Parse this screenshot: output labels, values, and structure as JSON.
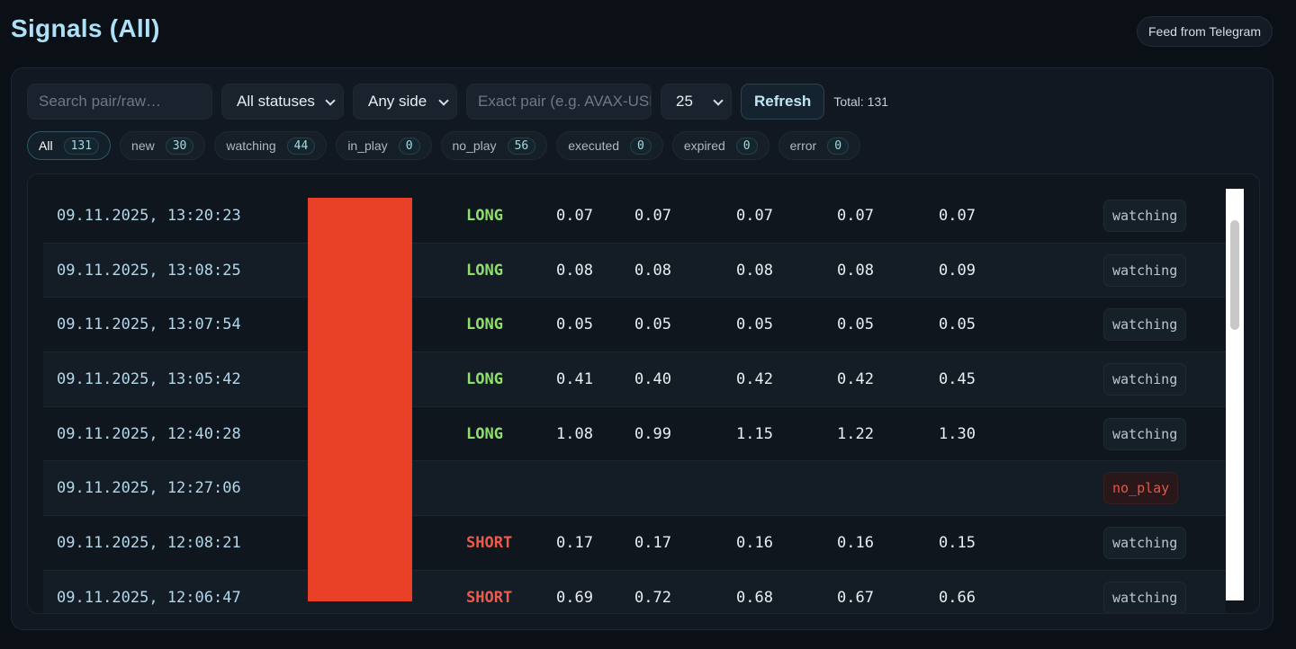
{
  "header": {
    "title": "Signals (All)",
    "feed_button": "Feed from Telegram"
  },
  "controls": {
    "search_placeholder": "Search pair/raw…",
    "status_select": "All statuses",
    "side_select": "Any side",
    "pair_placeholder": "Exact pair (e.g. AVAX-USDT)",
    "page_size": "25",
    "refresh_label": "Refresh",
    "total": "Total: 131"
  },
  "chips": [
    {
      "label": "All",
      "count": "131",
      "active": true
    },
    {
      "label": "new",
      "count": "30"
    },
    {
      "label": "watching",
      "count": "44"
    },
    {
      "label": "in_play",
      "count": "0"
    },
    {
      "label": "no_play",
      "count": "56"
    },
    {
      "label": "executed",
      "count": "0"
    },
    {
      "label": "expired",
      "count": "0"
    },
    {
      "label": "error",
      "count": "0"
    }
  ],
  "rows": [
    {
      "date": "09.11.2025, 13:20:23",
      "side": "LONG",
      "v1": "0.07",
      "v2": "0.07",
      "v3": "0.07",
      "v4": "0.07",
      "v5": "0.07",
      "status": "watching"
    },
    {
      "date": "09.11.2025, 13:08:25",
      "side": "LONG",
      "v1": "0.08",
      "v2": "0.08",
      "v3": "0.08",
      "v4": "0.08",
      "v5": "0.09",
      "status": "watching"
    },
    {
      "date": "09.11.2025, 13:07:54",
      "side": "LONG",
      "v1": "0.05",
      "v2": "0.05",
      "v3": "0.05",
      "v4": "0.05",
      "v5": "0.05",
      "status": "watching"
    },
    {
      "date": "09.11.2025, 13:05:42",
      "side": "LONG",
      "v1": "0.41",
      "v2": "0.40",
      "v3": "0.42",
      "v4": "0.42",
      "v5": "0.45",
      "status": "watching"
    },
    {
      "date": "09.11.2025, 12:40:28",
      "side": "LONG",
      "v1": "1.08",
      "v2": "0.99",
      "v3": "1.15",
      "v4": "1.22",
      "v5": "1.30",
      "status": "watching"
    },
    {
      "date": "09.11.2025, 12:27:06",
      "side": "",
      "v1": "",
      "v2": "",
      "v3": "",
      "v4": "",
      "v5": "",
      "status": "no_play"
    },
    {
      "date": "09.11.2025, 12:08:21",
      "side": "SHORT",
      "v1": "0.17",
      "v2": "0.17",
      "v3": "0.16",
      "v4": "0.16",
      "v5": "0.15",
      "status": "watching"
    },
    {
      "date": "09.11.2025, 12:06:47",
      "side": "SHORT",
      "v1": "0.69",
      "v2": "0.72",
      "v3": "0.68",
      "v4": "0.67",
      "v5": "0.66",
      "status": "watching"
    }
  ],
  "colors": {
    "long": "#8fe06a",
    "short": "#ef5a49",
    "redacted_block": "#e94128",
    "title": "#aee1f7"
  }
}
